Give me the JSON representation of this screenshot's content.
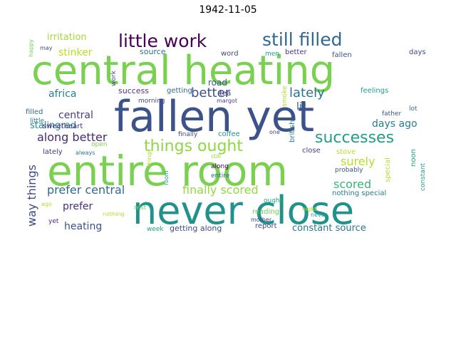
{
  "title": "1942-11-05",
  "words": [
    {
      "text": "central heating",
      "color": "#7ad151"
    },
    {
      "text": "fallen yet",
      "color": "#3b528b"
    },
    {
      "text": "entire room",
      "color": "#7ad151"
    },
    {
      "text": "never close",
      "color": "#21918c"
    },
    {
      "text": "little work",
      "color": "#440154"
    },
    {
      "text": "still filled",
      "color": "#31688e"
    },
    {
      "text": "successes",
      "color": "#1f9e89"
    },
    {
      "text": "things ought",
      "color": "#8fd744"
    },
    {
      "text": "better",
      "color": "#3b528b"
    },
    {
      "text": "lately",
      "color": "#2c728e"
    },
    {
      "text": "prefer central",
      "color": "#31688e"
    },
    {
      "text": "finally scored",
      "color": "#95d840"
    },
    {
      "text": "along better",
      "color": "#482878"
    },
    {
      "text": "way things",
      "color": "#3e4a89"
    },
    {
      "text": "scored",
      "color": "#35b779"
    },
    {
      "text": "surely",
      "color": "#b5de2b"
    },
    {
      "text": "days ago",
      "color": "#287c8e"
    },
    {
      "text": "africa",
      "color": "#26828e"
    },
    {
      "text": "central",
      "color": "#433e85"
    },
    {
      "text": "stinker",
      "color": "#b5de2b"
    },
    {
      "text": "irritation",
      "color": "#a0da39"
    },
    {
      "text": "prefer",
      "color": "#472c7a"
    },
    {
      "text": "heating",
      "color": "#3b528b"
    },
    {
      "text": "constant source",
      "color": "#2a788e"
    },
    {
      "text": "stalingrad",
      "color": "#25858e"
    },
    {
      "text": "lit",
      "color": "#38598c"
    },
    {
      "text": "road",
      "color": "#38598c"
    },
    {
      "text": "tea",
      "color": "#46327e"
    },
    {
      "text": "getting along",
      "color": "#3e4a89"
    },
    {
      "text": "success",
      "color": "#443983"
    },
    {
      "text": "getting",
      "color": "#31688e"
    },
    {
      "text": "source",
      "color": "#2c728e"
    },
    {
      "text": "word",
      "color": "#3e4a89"
    },
    {
      "text": "men",
      "color": "#1f9e89"
    },
    {
      "text": "better",
      "color": "#443983"
    },
    {
      "text": "fallen",
      "color": "#3b528b"
    },
    {
      "text": "days",
      "color": "#3e4a89"
    },
    {
      "text": "feelings",
      "color": "#1f9e89"
    },
    {
      "text": "filled",
      "color": "#31688e"
    },
    {
      "text": "little",
      "color": "#2a788e"
    },
    {
      "text": "sweetheart",
      "color": "#46327e"
    },
    {
      "text": "morning",
      "color": "#3e4a89"
    },
    {
      "text": "margot",
      "color": "#433e85"
    },
    {
      "text": "smoke",
      "color": "#b5de2b"
    },
    {
      "text": "british",
      "color": "#287c8e"
    },
    {
      "text": "father",
      "color": "#38598c"
    },
    {
      "text": "lot",
      "color": "#2c728e"
    },
    {
      "text": "finally",
      "color": "#3e4a89"
    },
    {
      "text": "coffee",
      "color": "#21918c"
    },
    {
      "text": "one",
      "color": "#433e85"
    },
    {
      "text": "close",
      "color": "#443983"
    },
    {
      "text": "stove",
      "color": "#b5de2b"
    },
    {
      "text": "noon",
      "color": "#1f9e89"
    },
    {
      "text": "open",
      "color": "#7ad151"
    },
    {
      "text": "always",
      "color": "#2a788e"
    },
    {
      "text": "lately",
      "color": "#443983"
    },
    {
      "text": "still",
      "color": "#a0da39"
    },
    {
      "text": "along",
      "color": "#440154"
    },
    {
      "text": "entire",
      "color": "#31688e"
    },
    {
      "text": "probably",
      "color": "#3b528b"
    },
    {
      "text": "special",
      "color": "#b5de2b"
    },
    {
      "text": "constant",
      "color": "#1f9e89"
    },
    {
      "text": "nothing special",
      "color": "#2a788e"
    },
    {
      "text": "ought",
      "color": "#22a884"
    },
    {
      "text": "reading",
      "color": "#6ece58"
    },
    {
      "text": "night",
      "color": "#b5de2b"
    },
    {
      "text": "mother",
      "color": "#433e85"
    },
    {
      "text": "report",
      "color": "#3e4a89"
    },
    {
      "text": "week",
      "color": "#1f9e89"
    },
    {
      "text": "rest",
      "color": "#7ad151"
    },
    {
      "text": "nothing",
      "color": "#b5de2b"
    },
    {
      "text": "ago",
      "color": "#b5de2b"
    },
    {
      "text": "yet",
      "color": "#482878"
    },
    {
      "text": "happy",
      "color": "#6ece58"
    },
    {
      "text": "may",
      "color": "#3e4a89"
    },
    {
      "text": "work",
      "color": "#3e4a89"
    },
    {
      "text": "things",
      "color": "#b5de2b"
    },
    {
      "text": "room",
      "color": "#21918c"
    },
    {
      "text": "never",
      "color": "#1f9e89"
    }
  ]
}
